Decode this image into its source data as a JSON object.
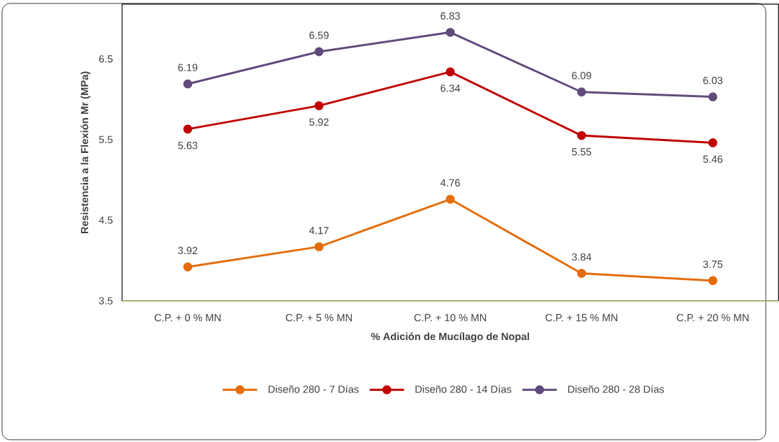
{
  "chart_data": {
    "type": "line",
    "xlabel": "% Adición de Mucílago de Nopal",
    "ylabel": "Resistencia a la Flexión Mr (MPa)",
    "categories": [
      "C.P. + 0 % MN",
      "C.P. + 5 % MN",
      "C.P. + 10 % MN",
      "C.P. + 15 % MN",
      "C.P. + 20 % MN"
    ],
    "series": [
      {
        "name": "Diseño 280 - 7 Días",
        "color": "#e46c0a",
        "values": [
          3.92,
          4.17,
          4.76,
          3.84,
          3.75
        ]
      },
      {
        "name": "Diseño 280 - 14 Días",
        "color": "#c00000",
        "values": [
          5.63,
          5.92,
          6.34,
          5.55,
          5.46
        ]
      },
      {
        "name": "Diseño 280 - 28 Días",
        "color": "#604a7b",
        "values": [
          6.19,
          6.59,
          6.83,
          6.09,
          6.03
        ]
      }
    ],
    "ylim": [
      3.5,
      7.18
    ],
    "yticks": [
      3.5,
      4.5,
      5.5,
      6.5
    ],
    "grid": false,
    "legend": "bottom",
    "marker": "circle",
    "line_style": "solid",
    "data_labels": true
  }
}
